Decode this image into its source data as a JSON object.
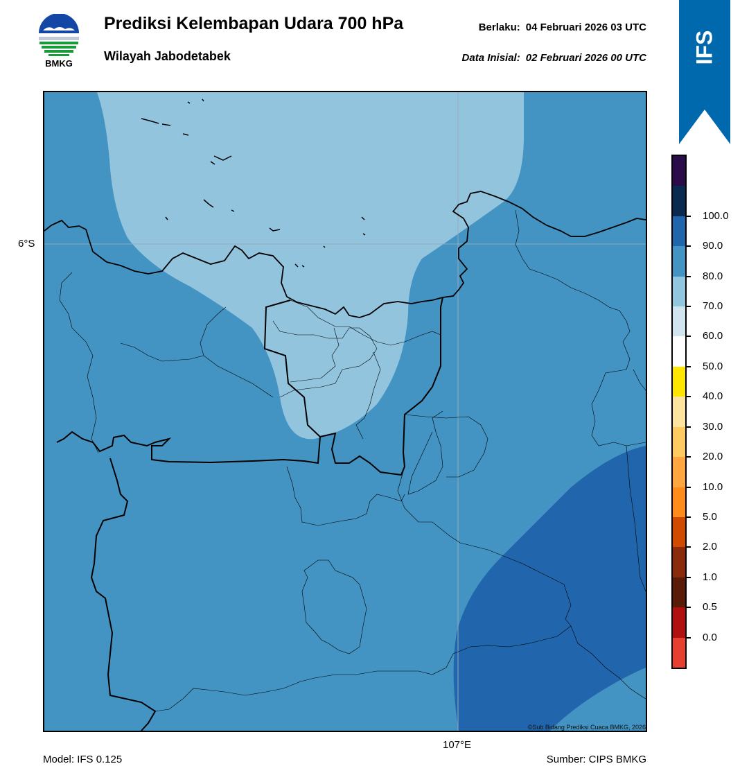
{
  "header": {
    "title": "Prediksi Kelembapan Udara 700 hPa",
    "subtitle": "Wilayah Jabodetabek",
    "valid_label": "Berlaku:",
    "valid_value": "04 Februari 2026 03 UTC",
    "init_label": "Data Inisial:",
    "init_value": "02 Februari 2026 00 UTC"
  },
  "logo": {
    "icon": "bmkg-logo-icon",
    "text": "BMKG"
  },
  "ribbon": {
    "text": "IFS",
    "color": "#0068ac"
  },
  "map": {
    "lat_label": "6°S",
    "lon_label": "107°E",
    "credit": "©Sub Bidang Prediksi Cuaca BMKG, 2026",
    "colors": {
      "light": "#92c4de",
      "mid": "#4393c3",
      "dark": "#2166ac"
    }
  },
  "colorbar": {
    "labels": [
      "100.0",
      "90.0",
      "80.0",
      "70.0",
      "60.0",
      "50.0",
      "40.0",
      "30.0",
      "20.0",
      "10.0",
      "5.0",
      "2.0",
      "1.0",
      "0.5",
      "0.0"
    ],
    "colors_top_to_bottom": [
      "#2b0b4a",
      "#0a2a50",
      "#2166ac",
      "#4393c3",
      "#92c5de",
      "#d1e5f0",
      "#ffffff",
      "#ffe600",
      "#ffe4a0",
      "#ffcb60",
      "#ffa640",
      "#ff8c1a",
      "#d04a00",
      "#8a2c0c",
      "#5a1c08",
      "#b01010",
      "#e84030"
    ]
  },
  "footer": {
    "model": "Model: IFS 0.125",
    "source": "Sumber: CIPS BMKG"
  }
}
